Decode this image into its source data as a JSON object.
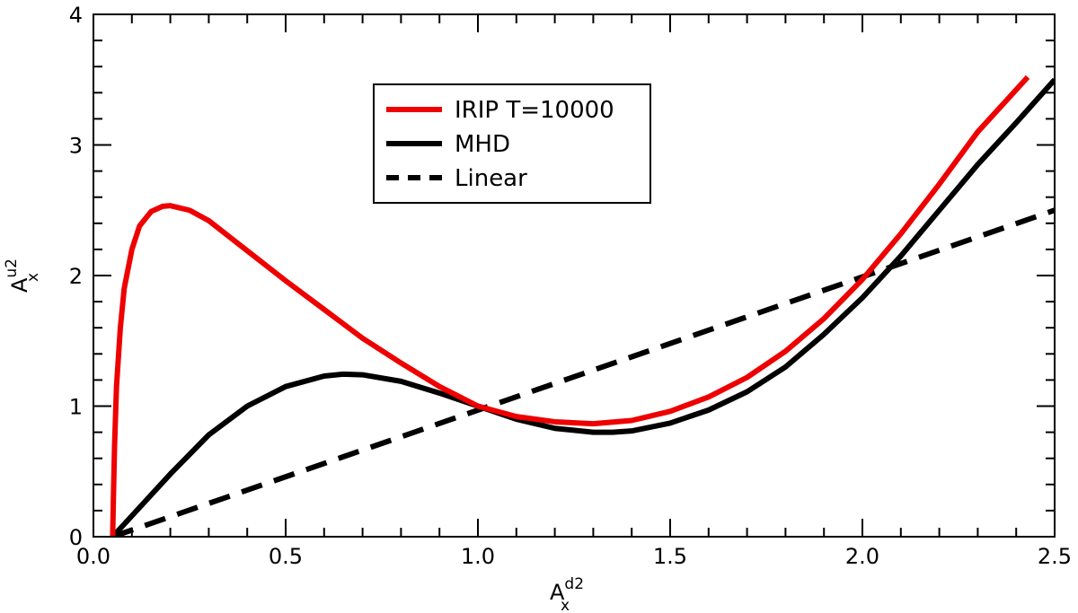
{
  "chart_data": {
    "type": "line",
    "title": "",
    "xlabel": {
      "base": "A",
      "sub": "x",
      "sup": "d2"
    },
    "ylabel": {
      "base": "A",
      "sub": "x",
      "sup": "u2"
    },
    "xlim": [
      0,
      2.5
    ],
    "ylim": [
      0,
      4
    ],
    "x_ticks": [
      0.0,
      0.5,
      1.0,
      1.5,
      2.0,
      2.5
    ],
    "x_tick_labels": [
      "0.0",
      "0.5",
      "1.0",
      "1.5",
      "2.0",
      "2.5"
    ],
    "y_ticks": [
      0,
      1,
      2,
      3,
      4
    ],
    "y_tick_labels": [
      "0",
      "1",
      "2",
      "3",
      "4"
    ],
    "x_minor_step": 0.1,
    "y_minor_step": 0.2,
    "grid": false,
    "legend_position": "top-center",
    "series": [
      {
        "name": "IRIP T=10000",
        "color": "#ee0000",
        "style": "solid",
        "points": [
          [
            0.05,
            0.0
          ],
          [
            0.052,
            0.3
          ],
          [
            0.055,
            0.7
          ],
          [
            0.06,
            1.15
          ],
          [
            0.07,
            1.6
          ],
          [
            0.08,
            1.9
          ],
          [
            0.1,
            2.2
          ],
          [
            0.12,
            2.38
          ],
          [
            0.15,
            2.49
          ],
          [
            0.18,
            2.53
          ],
          [
            0.2,
            2.535
          ],
          [
            0.25,
            2.5
          ],
          [
            0.3,
            2.42
          ],
          [
            0.4,
            2.19
          ],
          [
            0.5,
            1.96
          ],
          [
            0.6,
            1.74
          ],
          [
            0.7,
            1.52
          ],
          [
            0.8,
            1.33
          ],
          [
            0.9,
            1.15
          ],
          [
            1.0,
            1.0
          ],
          [
            1.1,
            0.92
          ],
          [
            1.2,
            0.88
          ],
          [
            1.3,
            0.865
          ],
          [
            1.4,
            0.89
          ],
          [
            1.5,
            0.96
          ],
          [
            1.6,
            1.07
          ],
          [
            1.7,
            1.22
          ],
          [
            1.8,
            1.42
          ],
          [
            1.9,
            1.67
          ],
          [
            2.0,
            1.97
          ],
          [
            2.1,
            2.32
          ],
          [
            2.2,
            2.7
          ],
          [
            2.3,
            3.1
          ],
          [
            2.43,
            3.52
          ]
        ]
      },
      {
        "name": "MHD",
        "color": "#000000",
        "style": "solid",
        "points": [
          [
            0.05,
            0.0
          ],
          [
            0.1,
            0.16
          ],
          [
            0.2,
            0.48
          ],
          [
            0.3,
            0.78
          ],
          [
            0.4,
            1.0
          ],
          [
            0.5,
            1.15
          ],
          [
            0.6,
            1.23
          ],
          [
            0.65,
            1.245
          ],
          [
            0.7,
            1.24
          ],
          [
            0.8,
            1.19
          ],
          [
            0.9,
            1.1
          ],
          [
            1.0,
            1.0
          ],
          [
            1.1,
            0.9
          ],
          [
            1.2,
            0.83
          ],
          [
            1.3,
            0.8
          ],
          [
            1.35,
            0.8
          ],
          [
            1.4,
            0.81
          ],
          [
            1.5,
            0.87
          ],
          [
            1.6,
            0.97
          ],
          [
            1.7,
            1.11
          ],
          [
            1.8,
            1.3
          ],
          [
            1.9,
            1.55
          ],
          [
            2.0,
            1.83
          ],
          [
            2.1,
            2.15
          ],
          [
            2.2,
            2.5
          ],
          [
            2.3,
            2.85
          ],
          [
            2.4,
            3.17
          ],
          [
            2.5,
            3.5
          ]
        ]
      },
      {
        "name": "Linear",
        "color": "#000000",
        "style": "dashed",
        "points": [
          [
            0.05,
            0.0
          ],
          [
            2.5,
            2.5
          ]
        ]
      }
    ]
  }
}
